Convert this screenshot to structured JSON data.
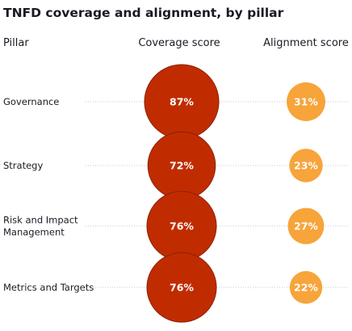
{
  "chart_data": {
    "type": "bubble-table",
    "title": "TNFD coverage and alignment, by pillar",
    "columns": {
      "row_header": "Pillar",
      "coverage": "Coverage score",
      "alignment": "Alignment score"
    },
    "rows": [
      {
        "label_lines": [
          "Governance"
        ],
        "coverage": 87,
        "alignment": 31
      },
      {
        "label_lines": [
          "Strategy"
        ],
        "coverage": 72,
        "alignment": 23
      },
      {
        "label_lines": [
          "Risk and Impact",
          "Management"
        ],
        "coverage": 76,
        "alignment": 27
      },
      {
        "label_lines": [
          "Metrics and Targets"
        ],
        "coverage": 76,
        "alignment": 22
      }
    ],
    "unit": "%",
    "colors": {
      "coverage": "#c02c00",
      "coverage_border": "#8e2000",
      "alignment": "#f7a43a",
      "leader": "#c8c8c8",
      "text": "#1a1a24"
    }
  }
}
